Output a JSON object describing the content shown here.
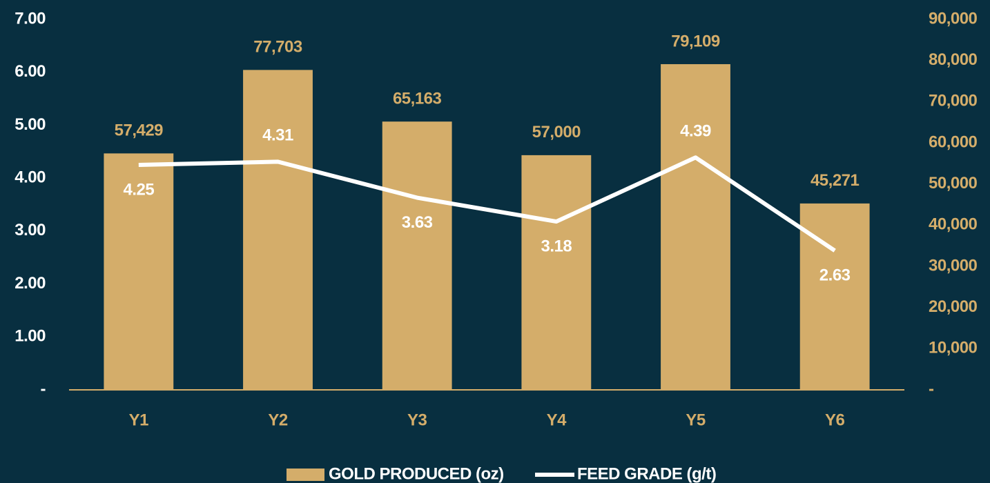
{
  "chart_data": {
    "type": "bar",
    "categories": [
      "Y1",
      "Y2",
      "Y3",
      "Y4",
      "Y5",
      "Y6"
    ],
    "series": [
      {
        "name": "GOLD PRODUCED (oz)",
        "type": "bar",
        "axis": "y2",
        "color": "#d4ad6a",
        "values": [
          57429,
          77703,
          65163,
          57000,
          79109,
          45271
        ],
        "value_labels": [
          "57,429",
          "77,703",
          "65,163",
          "57,000",
          "79,109",
          "45,271"
        ]
      },
      {
        "name": "FEED GRADE (g/t)",
        "type": "line",
        "axis": "y",
        "color": "#ffffff",
        "values": [
          4.25,
          4.31,
          3.63,
          3.18,
          4.39,
          2.63
        ]
      }
    ],
    "ylim": [
      0,
      7
    ],
    "yticks": [
      {
        "value": 0,
        "label": "-"
      },
      {
        "value": 1,
        "label": "1.00"
      },
      {
        "value": 2,
        "label": "2.00"
      },
      {
        "value": 3,
        "label": "3.00"
      },
      {
        "value": 4,
        "label": "4.00"
      },
      {
        "value": 5,
        "label": "5.00"
      },
      {
        "value": 6,
        "label": "6.00"
      },
      {
        "value": 7,
        "label": "7.00"
      }
    ],
    "y2lim": [
      0,
      90000
    ],
    "y2ticks": [
      {
        "value": 0,
        "label": "-"
      },
      {
        "value": 10000,
        "label": "10,000"
      },
      {
        "value": 20000,
        "label": "20,000"
      },
      {
        "value": 30000,
        "label": "30,000"
      },
      {
        "value": 40000,
        "label": "40,000"
      },
      {
        "value": 50000,
        "label": "50,000"
      },
      {
        "value": 60000,
        "label": "60,000"
      },
      {
        "value": 70000,
        "label": "70,000"
      },
      {
        "value": 80000,
        "label": "80,000"
      },
      {
        "value": 90000,
        "label": "90,000"
      }
    ],
    "grid": false,
    "legend": "bottom"
  }
}
